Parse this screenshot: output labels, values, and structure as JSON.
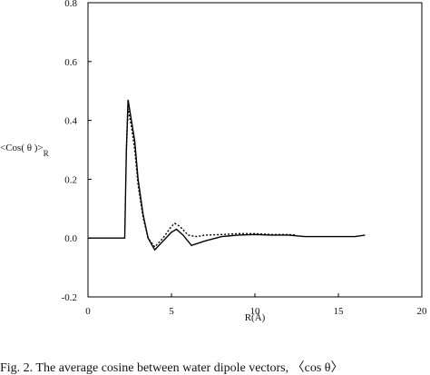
{
  "chart_data": {
    "type": "line",
    "ylabel": "<Cos( θ )>",
    "ylabel_subscript": "R",
    "xlabel": "R(Å)",
    "caption": "Fig. 2. The average cosine between water dipole vectors, 〈cos θ〉",
    "xlim": [
      0,
      20
    ],
    "xticks": [
      0,
      5,
      10,
      15,
      20
    ],
    "ylim": [
      -0.2,
      0.8
    ],
    "yticks": [
      -0.2,
      {
        "value": 0,
        "label": "0.0"
      },
      0.2,
      0.4,
      0.6,
      0.8
    ],
    "series": [
      {
        "color": "#000000",
        "dash": "solid",
        "x": [
          0,
          2.2,
          2.3,
          2.4,
          2.6,
          2.8,
          3.0,
          3.3,
          3.6,
          4.0,
          4.5,
          5.0,
          5.3,
          5.7,
          6.2,
          7.0,
          8.0,
          9.0,
          10.0,
          11.0,
          12.0,
          13.0,
          14.0,
          15.0,
          16.0,
          16.6
        ],
        "values": [
          0,
          0,
          0.3,
          0.47,
          0.4,
          0.33,
          0.2,
          0.08,
          0.0,
          -0.04,
          -0.01,
          0.02,
          0.03,
          0.01,
          -0.025,
          -0.01,
          0.005,
          0.01,
          0.012,
          0.01,
          0.01,
          0.005,
          0.005,
          0.005,
          0.005,
          0.01
        ]
      },
      {
        "color": "#000000",
        "dash": "dashed",
        "x": [
          2.3,
          2.4,
          2.6,
          2.8,
          3.0,
          3.3,
          3.6,
          4.0,
          4.5,
          5.0,
          5.2,
          5.5,
          6.0,
          6.5,
          7.0,
          8.0,
          9.0,
          10.0,
          11.0,
          12.0,
          12.5
        ],
        "values": [
          0.3,
          0.44,
          0.38,
          0.3,
          0.18,
          0.07,
          0.0,
          -0.03,
          0.0,
          0.04,
          0.05,
          0.04,
          0.01,
          0.005,
          0.01,
          0.012,
          0.015,
          0.015,
          0.012,
          0.012,
          0.01
        ]
      }
    ]
  }
}
